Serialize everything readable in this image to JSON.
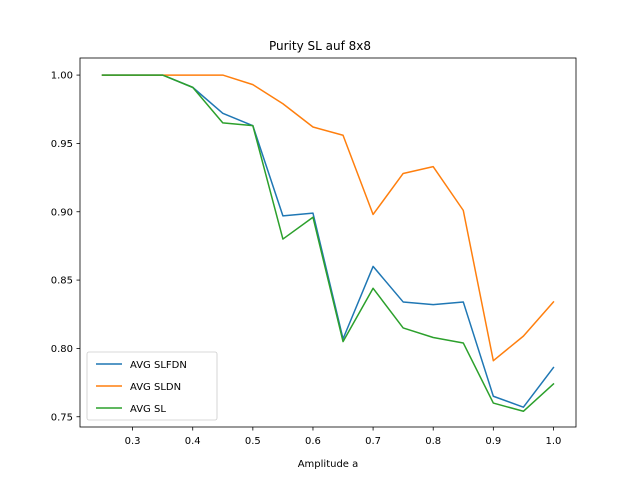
{
  "chart_data": {
    "type": "line",
    "title": "Purity SL auf 8x8",
    "xlabel": "Amplitude a",
    "ylabel": "",
    "xlim": [
      0.2125,
      1.0375
    ],
    "ylim": [
      0.7425,
      1.0125
    ],
    "xticks": [
      "0.3",
      "0.4",
      "0.5",
      "0.6",
      "0.7",
      "0.8",
      "0.9",
      "1.0"
    ],
    "xtick_values": [
      0.3,
      0.4,
      0.5,
      0.6,
      0.7,
      0.8,
      0.9,
      1.0
    ],
    "yticks": [
      "0.75",
      "0.80",
      "0.85",
      "0.90",
      "0.95",
      "1.00"
    ],
    "ytick_values": [
      0.75,
      0.8,
      0.85,
      0.9,
      0.95,
      1.0
    ],
    "grid": false,
    "legend_position": "lower-left",
    "x": [
      0.25,
      0.3,
      0.35,
      0.4,
      0.45,
      0.5,
      0.55,
      0.6,
      0.65,
      0.7,
      0.75,
      0.8,
      0.85,
      0.9,
      0.95,
      1.0
    ],
    "series": [
      {
        "name": "AVG SLFDN",
        "color": "#1f77b4",
        "values": [
          1.0,
          1.0,
          1.0,
          0.991,
          0.972,
          0.963,
          0.897,
          0.899,
          0.807,
          0.86,
          0.834,
          0.832,
          0.834,
          0.765,
          0.757,
          0.786
        ]
      },
      {
        "name": "AVG SLDN",
        "color": "#ff7f0e",
        "values": [
          1.0,
          1.0,
          1.0,
          1.0,
          1.0,
          0.993,
          0.979,
          0.962,
          0.956,
          0.898,
          0.928,
          0.933,
          0.901,
          0.791,
          0.809,
          0.834
        ]
      },
      {
        "name": "AVG SL",
        "color": "#2ca02c",
        "values": [
          1.0,
          1.0,
          1.0,
          0.991,
          0.965,
          0.963,
          0.88,
          0.896,
          0.805,
          0.844,
          0.815,
          0.808,
          0.804,
          0.76,
          0.754,
          0.774
        ]
      }
    ]
  }
}
